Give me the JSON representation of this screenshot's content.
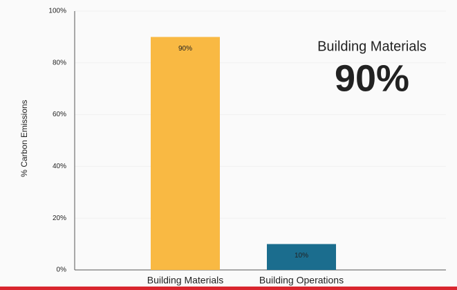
{
  "chart_data": {
    "type": "bar",
    "ylabel": "% Carbon Emissions",
    "categories": [
      "Building Materials",
      "Building Operations"
    ],
    "values": [
      90,
      10
    ],
    "value_labels": [
      "90%",
      "10%"
    ],
    "colors": [
      "#f9b943",
      "#1b6d8e"
    ],
    "ylim": [
      0,
      100
    ],
    "yticks": [
      {
        "value": 0,
        "label": "0%"
      },
      {
        "value": 20,
        "label": "20%"
      },
      {
        "value": 40,
        "label": "40%"
      },
      {
        "value": 60,
        "label": "60%"
      },
      {
        "value": 80,
        "label": "80%"
      },
      {
        "value": 100,
        "label": "100%"
      }
    ],
    "grid": true,
    "annotation": {
      "title": "Building Materials",
      "text": "90%"
    }
  }
}
